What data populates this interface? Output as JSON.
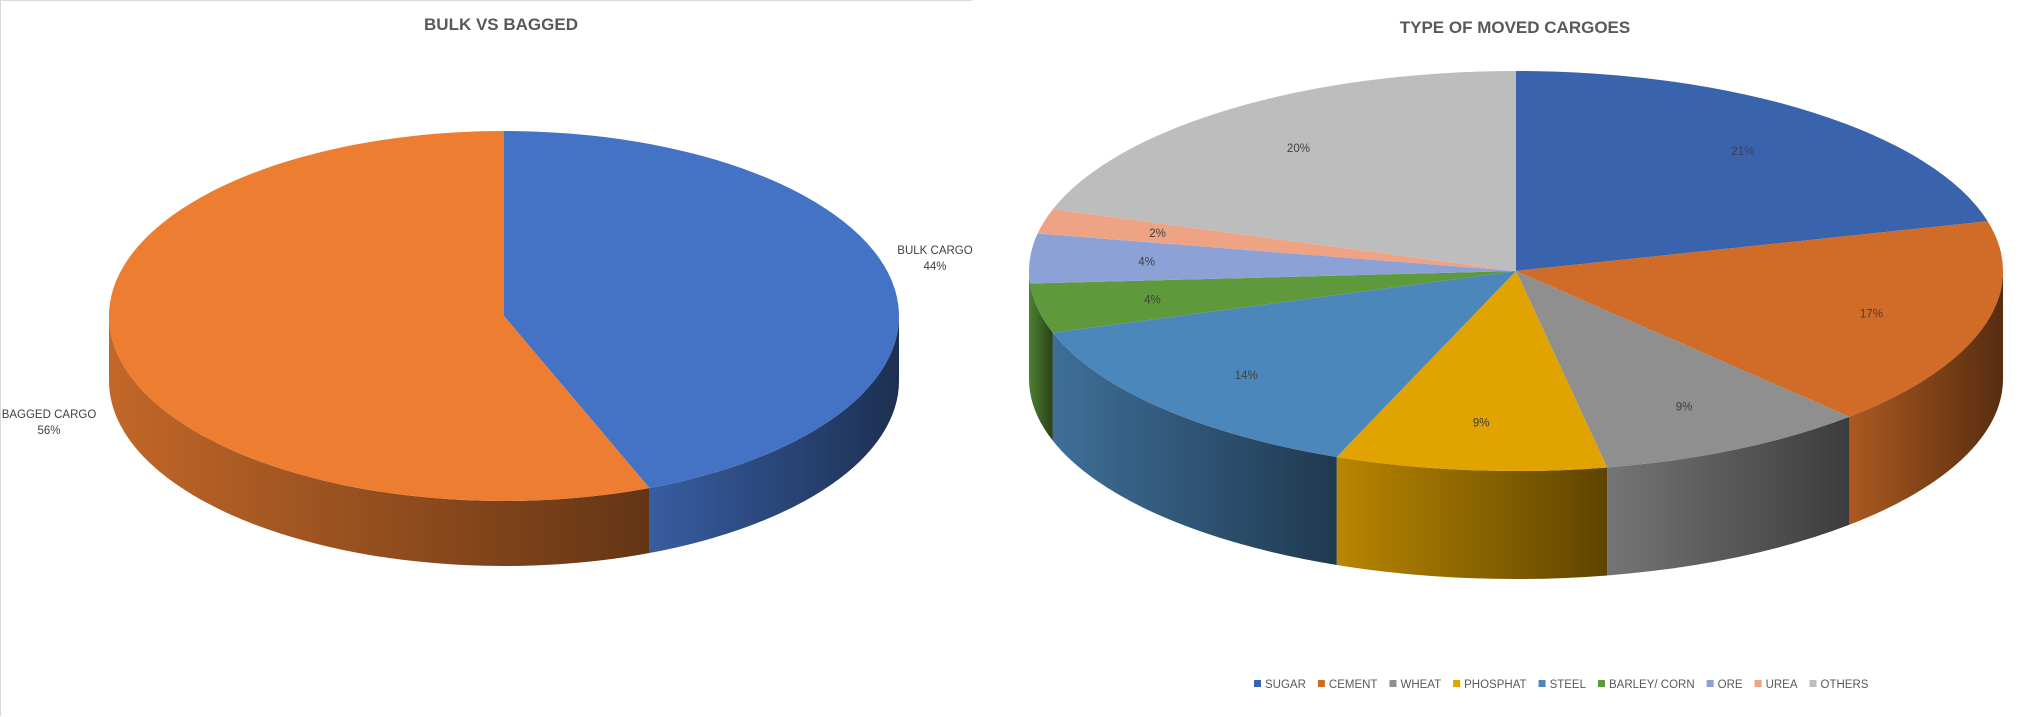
{
  "chart_data": [
    {
      "type": "pie",
      "title": "BULK VS BAGGED",
      "slices": [
        {
          "label": "BULK CARGO",
          "value": 44,
          "percent_label": "44%",
          "color": "#4472C4"
        },
        {
          "label": "BAGGED CARGO",
          "value": 56,
          "percent_label": "56%",
          "color": "#ED7D31"
        }
      ],
      "legend": "none",
      "style": "3d"
    },
    {
      "type": "pie",
      "title": "TYPE OF MOVED CARGOES",
      "slices": [
        {
          "label": "SUGAR",
          "value": 21,
          "percent_label": "21%",
          "color": "#3A63AD"
        },
        {
          "label": "CEMENT",
          "value": 17,
          "percent_label": "17%",
          "color": "#D06C27"
        },
        {
          "label": "WHEAT",
          "value": 9,
          "percent_label": "9%",
          "color": "#8F8F8F"
        },
        {
          "label": "PHOSPHAT",
          "value": 9,
          "percent_label": "9%",
          "color": "#E0A300"
        },
        {
          "label": "STEEL",
          "value": 14,
          "percent_label": "14%",
          "color": "#4C87BB"
        },
        {
          "label": "BARLEY/ CORN",
          "value": 4,
          "percent_label": "4%",
          "color": "#5E9A3B"
        },
        {
          "label": "ORE",
          "value": 4,
          "percent_label": "4%",
          "color": "#8CA2D6"
        },
        {
          "label": "UREA",
          "value": 2,
          "percent_label": "2%",
          "color": "#EFA385"
        },
        {
          "label": "OTHERS",
          "value": 20,
          "percent_label": "20%",
          "color": "#BDBDBD"
        }
      ],
      "legend": "bottom",
      "style": "3d"
    }
  ]
}
